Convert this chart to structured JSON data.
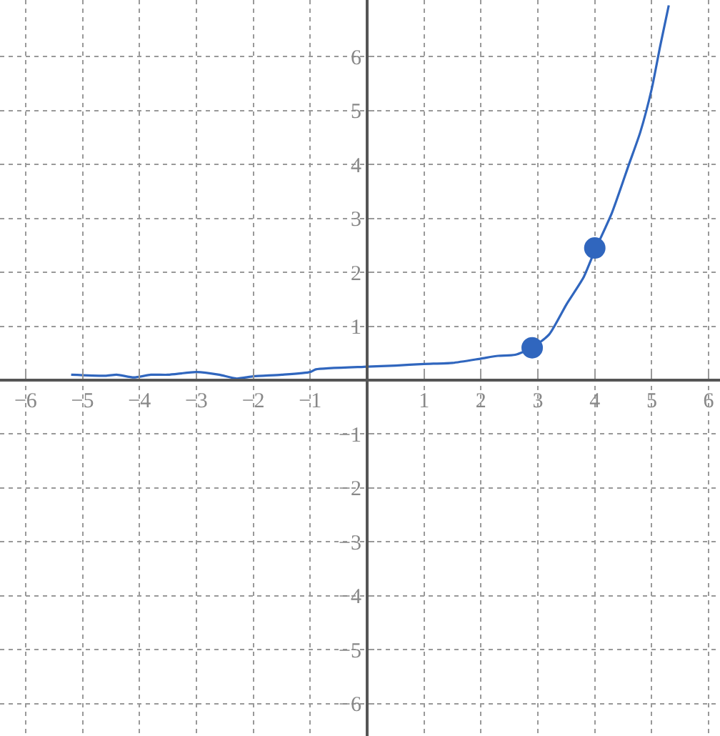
{
  "chart_data": {
    "type": "line",
    "x": [
      -5.2,
      -4.6,
      -4.4,
      -4.1,
      -3.8,
      -3.5,
      -3,
      -2.6,
      -2.3,
      -2,
      -1.5,
      -1,
      -0.9,
      0,
      0.5,
      1,
      1.5,
      2,
      2.3,
      2.6,
      2.9,
      3.2,
      3.5,
      3.8,
      4,
      4.3,
      4.6,
      4.8,
      5,
      5.15,
      5.3
    ],
    "series": [
      {
        "color": "#3066be",
        "values": [
          0.1,
          0.08,
          0.1,
          0.05,
          0.1,
          0.1,
          0.15,
          0.1,
          0.03,
          0.07,
          0.1,
          0.15,
          0.2,
          0.25,
          0.27,
          0.3,
          0.32,
          0.4,
          0.45,
          0.47,
          0.6,
          0.85,
          1.4,
          1.9,
          2.4,
          3.1,
          4,
          4.6,
          5.4,
          6.2,
          6.95
        ]
      },
      {
        "type": "scatter",
        "x": [
          2.9,
          4
        ],
        "color": "#3066be",
        "values": [
          0.6,
          2.45
        ],
        "marker": "circle"
      }
    ],
    "xlim": [
      -6.45,
      6.2
    ],
    "ylim": [
      -6.6,
      7.05
    ],
    "xticks": [
      -6,
      -5,
      -4,
      -3,
      -2,
      -1,
      1,
      2,
      3,
      4,
      5,
      6
    ],
    "yticks": [
      -6,
      -5,
      -4,
      -3,
      -2,
      -1,
      1,
      2,
      3,
      4,
      5,
      6
    ],
    "grid": true,
    "marker": "none",
    "line_style": "solid"
  }
}
